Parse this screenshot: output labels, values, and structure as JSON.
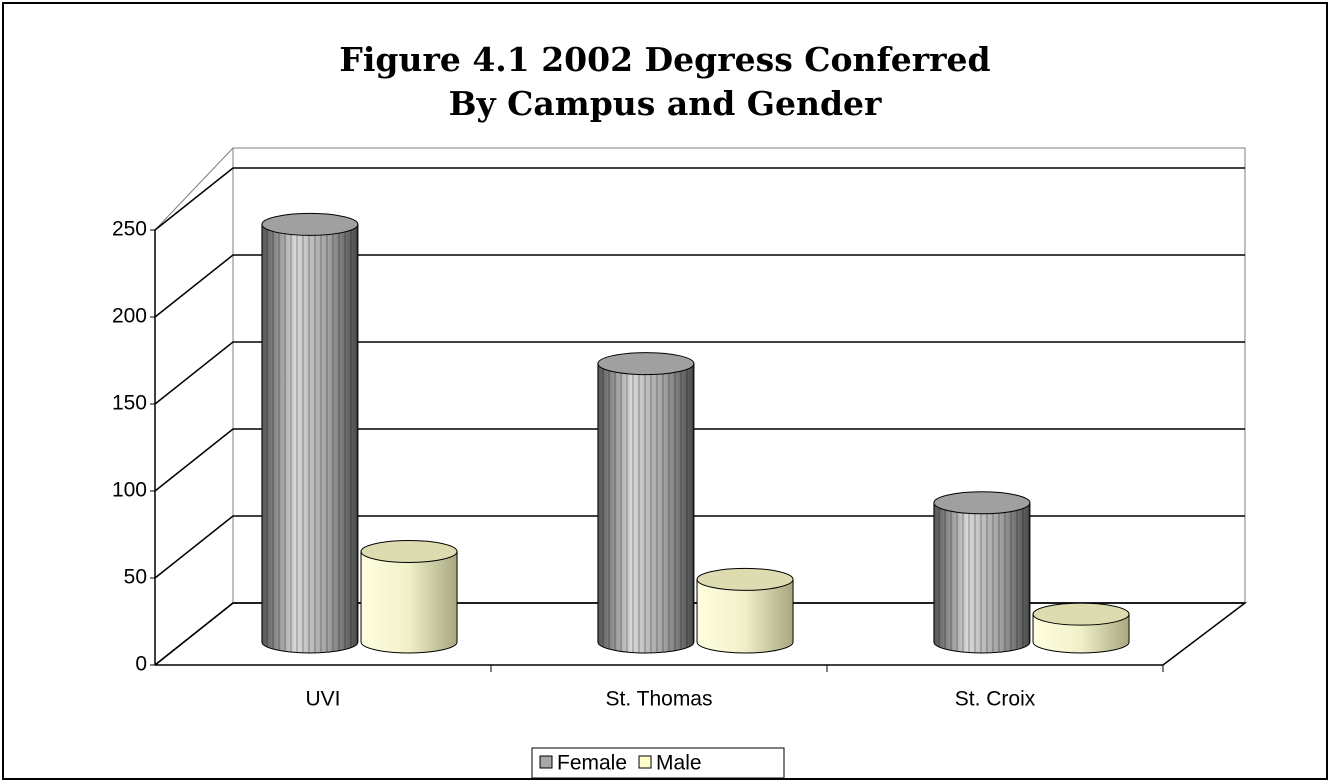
{
  "chart_data": {
    "type": "bar3d-cylinder",
    "title": [
      "Figure 4.1 2002 Degress Conferred",
      "By Campus and Gender"
    ],
    "categories": [
      "UVI",
      "St. Thomas",
      "St. Croix"
    ],
    "series": [
      {
        "name": "Female",
        "color": "#a6a6a6",
        "values": [
          240,
          160,
          80
        ]
      },
      {
        "name": "Male",
        "color": "#ffffcc",
        "values": [
          52,
          36,
          16
        ]
      }
    ],
    "ylim": [
      0,
      250
    ],
    "yticks": [
      0,
      50,
      100,
      150,
      200,
      250
    ],
    "grid": true,
    "legend": "bottom"
  }
}
